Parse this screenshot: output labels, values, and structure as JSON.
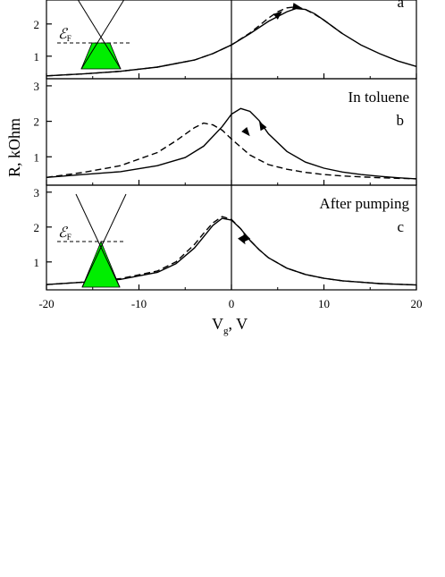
{
  "chart_data": [
    {
      "type": "line",
      "panel_letter": "a",
      "title": "",
      "xlim": [
        -20,
        20
      ],
      "ylim": [
        0.3,
        3.3
      ],
      "yticks": [
        "1",
        "2"
      ],
      "series": [
        {
          "style": "solid",
          "x": [
            -20,
            -16,
            -12,
            -8,
            -4,
            -2,
            0,
            2,
            4,
            6,
            7,
            8,
            9,
            10,
            12,
            14,
            16,
            18,
            20
          ],
          "y": [
            0.39,
            0.45,
            0.53,
            0.66,
            0.88,
            1.08,
            1.35,
            1.7,
            2.08,
            2.38,
            2.48,
            2.45,
            2.32,
            2.12,
            1.7,
            1.35,
            1.08,
            0.85,
            0.68
          ]
        },
        {
          "style": "dashed",
          "x": [
            -20,
            -16,
            -12,
            -8,
            -4,
            -2,
            0,
            2,
            4,
            5,
            6,
            7,
            8,
            9,
            10,
            12
          ],
          "y": [
            0.39,
            0.45,
            0.53,
            0.66,
            0.88,
            1.08,
            1.35,
            1.72,
            2.18,
            2.38,
            2.5,
            2.53,
            2.45,
            2.3,
            2.12,
            1.7
          ]
        }
      ],
      "inset": {
        "label": "ℰ",
        "sub": "F",
        "fill_level": "low"
      }
    },
    {
      "type": "line",
      "panel_letter": "b",
      "annotation": "In  toluene",
      "xlim": [
        -20,
        20
      ],
      "ylim": [
        0.2,
        3.2
      ],
      "yticks": [
        "1",
        "2",
        "3"
      ],
      "series": [
        {
          "style": "solid",
          "x": [
            -20,
            -16,
            -12,
            -8,
            -5,
            -3,
            -1,
            0,
            1,
            2,
            3,
            4,
            6,
            8,
            10,
            12,
            14,
            16,
            18,
            20
          ],
          "y": [
            0.42,
            0.5,
            0.58,
            0.75,
            0.98,
            1.3,
            1.85,
            2.2,
            2.36,
            2.28,
            2.02,
            1.65,
            1.15,
            0.85,
            0.68,
            0.57,
            0.5,
            0.45,
            0.41,
            0.38
          ]
        },
        {
          "style": "dashed",
          "x": [
            -20,
            -16,
            -12,
            -8,
            -6,
            -4,
            -3,
            -2,
            -1,
            0,
            2,
            4,
            6,
            8,
            10,
            12,
            16,
            20
          ],
          "y": [
            0.42,
            0.56,
            0.75,
            1.12,
            1.45,
            1.82,
            1.95,
            1.9,
            1.75,
            1.5,
            1.05,
            0.78,
            0.65,
            0.56,
            0.5,
            0.46,
            0.41,
            0.38
          ]
        }
      ]
    },
    {
      "type": "line",
      "panel_letter": "c",
      "annotation": "After pumping",
      "xlim": [
        -20,
        20
      ],
      "xticks": [
        "-20",
        "-10",
        "0",
        "10",
        "20"
      ],
      "ylim": [
        0.2,
        3.2
      ],
      "yticks": [
        "1",
        "2",
        "3"
      ],
      "series": [
        {
          "style": "solid",
          "x": [
            -20,
            -16,
            -12,
            -8,
            -6,
            -4,
            -3,
            -2,
            -1,
            0,
            1,
            2,
            3,
            4,
            6,
            8,
            10,
            12,
            14,
            16,
            18,
            20
          ],
          "y": [
            0.35,
            0.42,
            0.5,
            0.7,
            0.95,
            1.4,
            1.72,
            2.05,
            2.25,
            2.2,
            1.95,
            1.62,
            1.35,
            1.12,
            0.82,
            0.64,
            0.53,
            0.46,
            0.42,
            0.38,
            0.36,
            0.34
          ]
        },
        {
          "style": "dashed",
          "x": [
            -20,
            -16,
            -12,
            -8,
            -6,
            -4,
            -3,
            -2,
            -1,
            0,
            1,
            2,
            3,
            4,
            6,
            8,
            10,
            12,
            14,
            16,
            18,
            20
          ],
          "y": [
            0.35,
            0.42,
            0.52,
            0.74,
            1.0,
            1.5,
            1.82,
            2.12,
            2.3,
            2.22,
            1.95,
            1.62,
            1.35,
            1.12,
            0.82,
            0.64,
            0.53,
            0.46,
            0.42,
            0.38,
            0.36,
            0.34
          ]
        }
      ],
      "inset": {
        "label": "ℰ",
        "sub": "F",
        "fill_level": "neutral"
      }
    }
  ],
  "axes": {
    "xlabel_main": "V",
    "xlabel_sub": "g",
    "xlabel_tail": ", V",
    "ylabel": "R, kOhm"
  }
}
